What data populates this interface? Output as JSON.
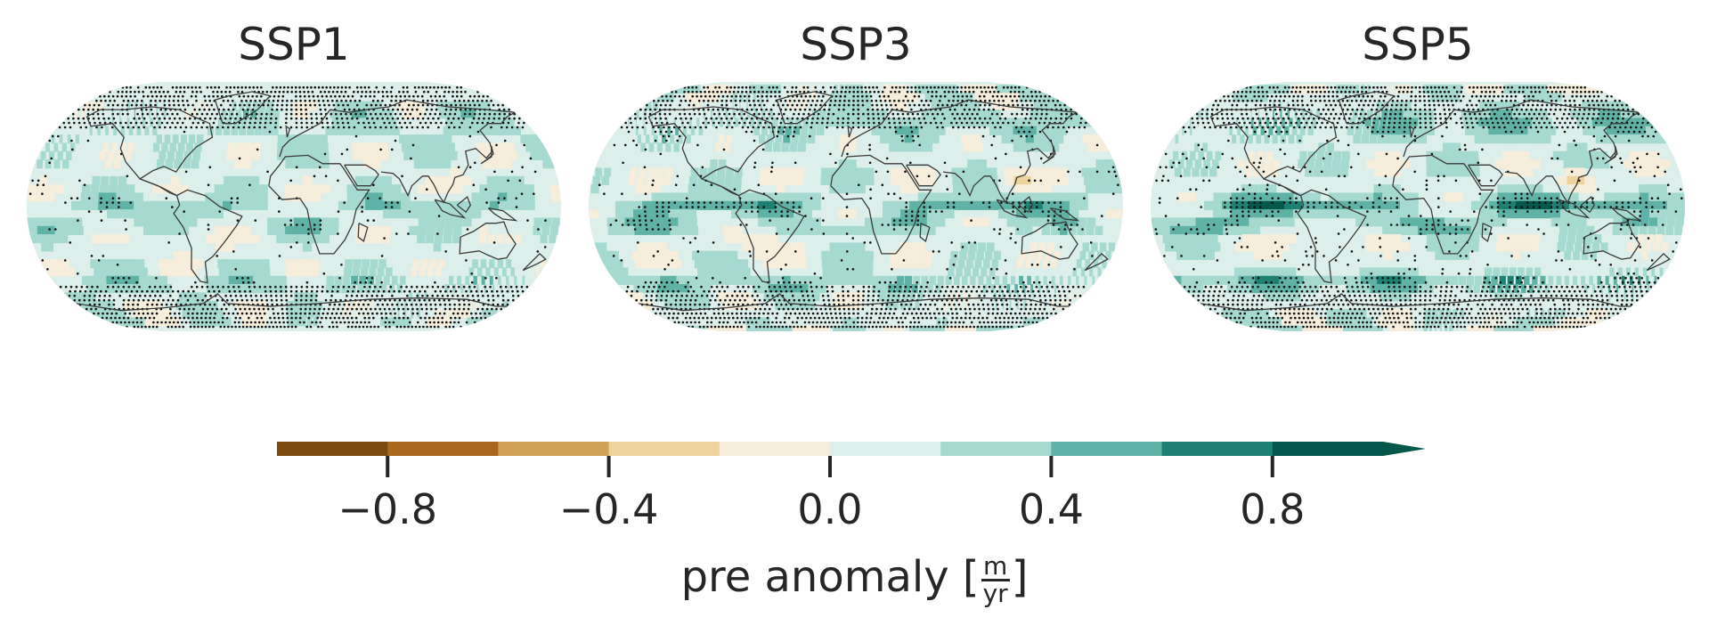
{
  "chart_data": {
    "type": "heatmap",
    "panels": [
      {
        "title": "SSP1",
        "intensity": 0.55
      },
      {
        "title": "SSP3",
        "intensity": 0.85
      },
      {
        "title": "SSP5",
        "intensity": 1.15
      }
    ],
    "colorbar": {
      "label_prefix": "pre anomaly [",
      "unit_numerator": "m",
      "unit_denominator": "yr",
      "label_suffix": "]",
      "vmin": -1.0,
      "vmax": 1.0,
      "extend": "max",
      "ticks": [
        -0.8,
        -0.4,
        0.0,
        0.4,
        0.8
      ],
      "tick_labels": [
        "−0.8",
        "−0.4",
        "0.0",
        "0.4",
        "0.8"
      ],
      "levels": [
        -1.0,
        -0.8,
        -0.6,
        -0.4,
        -0.2,
        0.0,
        0.2,
        0.4,
        0.6,
        0.8,
        1.0
      ],
      "colors": [
        "#7a4a10",
        "#a8691f",
        "#cfa258",
        "#ecd49c",
        "#f6eedb",
        "#dcefea",
        "#a6dad0",
        "#5fb3a6",
        "#1e8073",
        "#03574b"
      ]
    },
    "stippling": "dots mark significant grid cells",
    "projection": "Eckert IV"
  }
}
